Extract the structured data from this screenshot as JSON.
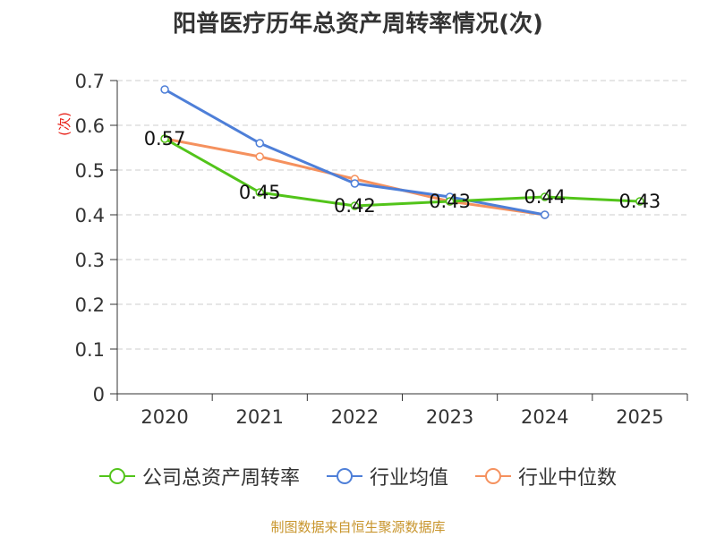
{
  "chart_data": {
    "type": "line",
    "title": "阳普医疗历年总资产周转率情况(次)",
    "ylabel": "(次)",
    "xlabel": "",
    "categories": [
      "2020",
      "2021",
      "2022",
      "2023",
      "2024",
      "2025"
    ],
    "ylim": [
      0,
      0.7
    ],
    "yticks": [
      0,
      0.1,
      0.2,
      0.3,
      0.4,
      0.5,
      0.6,
      0.7
    ],
    "ytick_labels": [
      "0",
      "0.1",
      "0.2",
      "0.3",
      "0.4",
      "0.5",
      "0.6",
      "0.7"
    ],
    "grid": true,
    "series": [
      {
        "name": "公司总资产周转率",
        "color": "#52c41a",
        "values": [
          0.57,
          0.45,
          0.42,
          0.43,
          0.44,
          0.43
        ],
        "labels": [
          "0.57",
          "0.45",
          "0.42",
          "0.43",
          "0.44",
          "0.43"
        ]
      },
      {
        "name": "行业均值",
        "color": "#4e7fd8",
        "values": [
          0.68,
          0.56,
          0.47,
          0.44,
          0.4,
          null
        ],
        "labels": []
      },
      {
        "name": "行业中位数",
        "color": "#f5915e",
        "values": [
          0.57,
          0.53,
          0.48,
          0.43,
          0.4,
          null
        ],
        "labels": []
      }
    ],
    "legend_position": "bottom"
  },
  "source": "制图数据来自恒生聚源数据库"
}
